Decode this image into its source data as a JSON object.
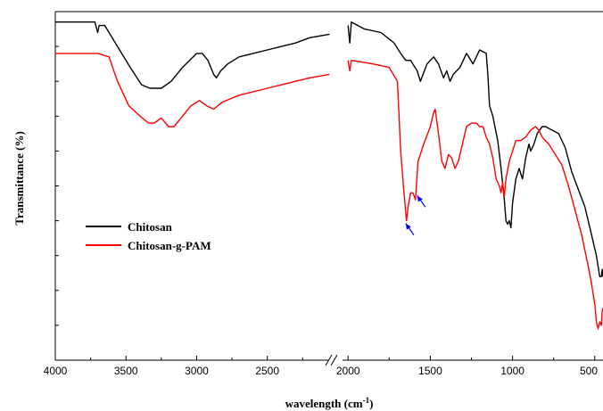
{
  "chart_data": {
    "type": "line",
    "title": "",
    "xlabel": "wavelength (cm",
    "xlabel_sup": "-1",
    "xlabel_close": ")",
    "ylabel": "Transmittance (%)",
    "x_axis_reversed": true,
    "x_axis_broken": true,
    "x_segments": [
      {
        "xlim": [
          4000,
          2050
        ],
        "ticks": [
          4000,
          3500,
          3000,
          2500
        ]
      },
      {
        "xlim": [
          2050,
          450
        ],
        "ticks": [
          2000,
          1500,
          1000,
          500
        ]
      }
    ],
    "tick_labels": [
      "4000",
      "3500",
      "3000",
      "2500",
      "2000",
      "1500",
      "1000",
      "500"
    ],
    "y_ticks": "unlabeled",
    "ylim": [
      0,
      100
    ],
    "legend": {
      "placement": "left-center"
    },
    "grid": false,
    "series": [
      {
        "name": "Chitosan",
        "color": "#000000",
        "segment1": [
          [
            4000,
            97
          ],
          [
            3760,
            97
          ],
          [
            3720,
            97
          ],
          [
            3700,
            94
          ],
          [
            3690,
            96
          ],
          [
            3650,
            96
          ],
          [
            3560,
            90
          ],
          [
            3470,
            84
          ],
          [
            3390,
            79
          ],
          [
            3330,
            78
          ],
          [
            3250,
            78
          ],
          [
            3180,
            80
          ],
          [
            3100,
            84
          ],
          [
            3000,
            88
          ],
          [
            2960,
            88
          ],
          [
            2920,
            86
          ],
          [
            2880,
            82
          ],
          [
            2860,
            81
          ],
          [
            2830,
            83
          ],
          [
            2780,
            85
          ],
          [
            2700,
            87
          ],
          [
            2600,
            88
          ],
          [
            2500,
            89
          ],
          [
            2400,
            90
          ],
          [
            2300,
            91
          ],
          [
            2200,
            92.5
          ],
          [
            2060,
            93.5
          ]
        ],
        "segment2": [
          [
            2000,
            96
          ],
          [
            1990,
            91
          ],
          [
            1980,
            97
          ],
          [
            1900,
            95
          ],
          [
            1800,
            94
          ],
          [
            1720,
            91
          ],
          [
            1680,
            88
          ],
          [
            1650,
            86
          ],
          [
            1620,
            86
          ],
          [
            1580,
            83
          ],
          [
            1560,
            80
          ],
          [
            1520,
            85
          ],
          [
            1480,
            87
          ],
          [
            1450,
            85
          ],
          [
            1420,
            81
          ],
          [
            1400,
            83
          ],
          [
            1380,
            80
          ],
          [
            1360,
            82
          ],
          [
            1320,
            84
          ],
          [
            1280,
            88
          ],
          [
            1240,
            85
          ],
          [
            1220,
            87
          ],
          [
            1200,
            89
          ],
          [
            1160,
            88
          ],
          [
            1150,
            82
          ],
          [
            1140,
            73
          ],
          [
            1120,
            70
          ],
          [
            1090,
            63
          ],
          [
            1070,
            55
          ],
          [
            1050,
            46
          ],
          [
            1040,
            40
          ],
          [
            1030,
            39
          ],
          [
            1020,
            40
          ],
          [
            1010,
            38
          ],
          [
            1000,
            45
          ],
          [
            980,
            52
          ],
          [
            960,
            55
          ],
          [
            940,
            52
          ],
          [
            920,
            58
          ],
          [
            900,
            62
          ],
          [
            890,
            60
          ],
          [
            870,
            62
          ],
          [
            850,
            65
          ],
          [
            820,
            67
          ],
          [
            800,
            67
          ],
          [
            760,
            66
          ],
          [
            720,
            65
          ],
          [
            680,
            61
          ],
          [
            640,
            54
          ],
          [
            600,
            49
          ],
          [
            560,
            44
          ],
          [
            520,
            36
          ],
          [
            490,
            30
          ],
          [
            470,
            24
          ],
          [
            460,
            24
          ],
          [
            455,
            26
          ],
          [
            450,
            24
          ]
        ]
      },
      {
        "name": "Chitosan-g-PAM",
        "color": "#ff0000",
        "segment1": [
          [
            4000,
            88
          ],
          [
            3700,
            88
          ],
          [
            3620,
            87
          ],
          [
            3560,
            80
          ],
          [
            3480,
            73
          ],
          [
            3400,
            70
          ],
          [
            3340,
            68
          ],
          [
            3300,
            68
          ],
          [
            3250,
            69.5
          ],
          [
            3200,
            67
          ],
          [
            3160,
            67
          ],
          [
            3100,
            70
          ],
          [
            3040,
            73
          ],
          [
            2980,
            74.5
          ],
          [
            2930,
            73
          ],
          [
            2880,
            72
          ],
          [
            2820,
            74
          ],
          [
            2700,
            76
          ],
          [
            2600,
            77
          ],
          [
            2500,
            78
          ],
          [
            2400,
            79
          ],
          [
            2300,
            80
          ],
          [
            2200,
            81
          ],
          [
            2060,
            82
          ]
        ],
        "segment2": [
          [
            2000,
            86
          ],
          [
            1990,
            83
          ],
          [
            1980,
            86
          ],
          [
            1850,
            85
          ],
          [
            1750,
            84
          ],
          [
            1700,
            80
          ],
          [
            1680,
            60
          ],
          [
            1660,
            48
          ],
          [
            1645,
            40
          ],
          [
            1635,
            44
          ],
          [
            1620,
            48
          ],
          [
            1605,
            48
          ],
          [
            1590,
            46
          ],
          [
            1575,
            57
          ],
          [
            1540,
            62
          ],
          [
            1500,
            67
          ],
          [
            1480,
            71
          ],
          [
            1470,
            72
          ],
          [
            1450,
            65
          ],
          [
            1430,
            57
          ],
          [
            1410,
            55
          ],
          [
            1390,
            59
          ],
          [
            1370,
            58
          ],
          [
            1350,
            55
          ],
          [
            1330,
            57
          ],
          [
            1300,
            63
          ],
          [
            1280,
            67
          ],
          [
            1250,
            68
          ],
          [
            1220,
            68
          ],
          [
            1200,
            67
          ],
          [
            1180,
            67
          ],
          [
            1160,
            64
          ],
          [
            1140,
            62
          ],
          [
            1120,
            58
          ],
          [
            1100,
            52
          ],
          [
            1080,
            50
          ],
          [
            1070,
            48
          ],
          [
            1060,
            51
          ],
          [
            1050,
            47
          ],
          [
            1040,
            52
          ],
          [
            1020,
            57
          ],
          [
            1000,
            60
          ],
          [
            980,
            63
          ],
          [
            950,
            63
          ],
          [
            920,
            64
          ],
          [
            890,
            66
          ],
          [
            860,
            67
          ],
          [
            840,
            66
          ],
          [
            820,
            64
          ],
          [
            780,
            62
          ],
          [
            740,
            59
          ],
          [
            700,
            56
          ],
          [
            660,
            50
          ],
          [
            620,
            43
          ],
          [
            580,
            36
          ],
          [
            540,
            27
          ],
          [
            520,
            22
          ],
          [
            500,
            16
          ],
          [
            490,
            11
          ],
          [
            480,
            9
          ],
          [
            470,
            11
          ],
          [
            460,
            10
          ],
          [
            455,
            14
          ],
          [
            450,
            15
          ]
        ]
      }
    ],
    "annotations": [
      {
        "type": "arrow",
        "color": "#0000ff",
        "x": 1660,
        "y": 40
      },
      {
        "type": "arrow",
        "color": "#0000ff",
        "x": 1590,
        "y": 48
      }
    ]
  }
}
